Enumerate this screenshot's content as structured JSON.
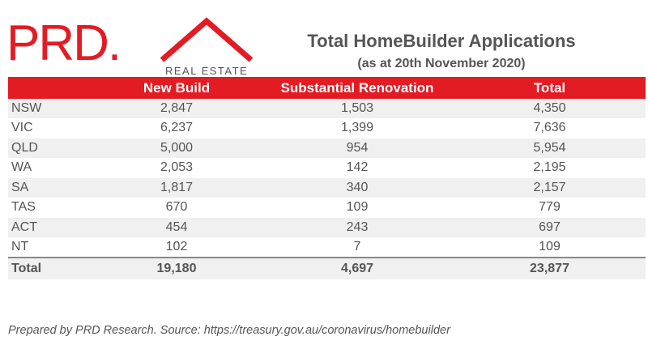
{
  "logo": {
    "brand": "PRD.",
    "tagline": "REAL ESTATE"
  },
  "header": {
    "title": "Total HomeBuilder Applications",
    "subtitle": "(as at 20th November 2020)"
  },
  "table": {
    "columns": [
      "",
      "New Build",
      "Substantial Renovation",
      "Total"
    ],
    "rows": [
      {
        "state": "NSW",
        "new_build": "2,847",
        "renovation": "1,503",
        "total": "4,350"
      },
      {
        "state": "VIC",
        "new_build": "6,237",
        "renovation": "1,399",
        "total": "7,636"
      },
      {
        "state": "QLD",
        "new_build": "5,000",
        "renovation": "954",
        "total": "5,954"
      },
      {
        "state": "WA",
        "new_build": "2,053",
        "renovation": "142",
        "total": "2,195"
      },
      {
        "state": "SA",
        "new_build": "1,817",
        "renovation": "340",
        "total": "2,157"
      },
      {
        "state": "TAS",
        "new_build": "670",
        "renovation": "109",
        "total": "779"
      },
      {
        "state": "ACT",
        "new_build": "454",
        "renovation": "243",
        "total": "697"
      },
      {
        "state": "NT",
        "new_build": "102",
        "renovation": "7",
        "total": "109"
      }
    ],
    "total": {
      "state": "Total",
      "new_build": "19,180",
      "renovation": "4,697",
      "total": "23,877"
    }
  },
  "footnote": "Prepared by PRD Research. Source: https://treasury.gov.au/coronavirus/homebuilder",
  "colors": {
    "brand_red": "#e31b23",
    "text_grey": "#555555",
    "row_stripe": "#f0f0f0"
  },
  "icons": {
    "logo_mark": "house-roof-icon"
  }
}
